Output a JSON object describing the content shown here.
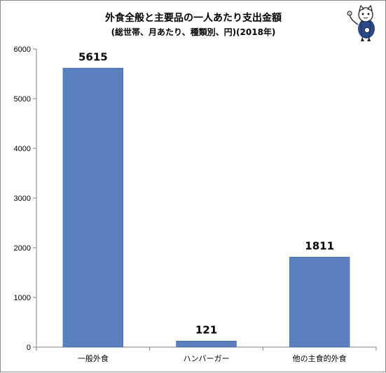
{
  "chart_data": {
    "type": "bar",
    "title": "外食全般と主要品の一人あたり支出金額",
    "subtitle": "(総世帯、月あたり、種類別、円)(2018年)",
    "categories": [
      "一般外食",
      "ハンバーガー",
      "他の主食的外食"
    ],
    "values": [
      5615,
      121,
      1811
    ],
    "data_labels": [
      "5615",
      "121",
      "1811"
    ],
    "y_ticks": [
      "0",
      "1000",
      "2000",
      "3000",
      "4000",
      "5000",
      "6000"
    ],
    "ylim": [
      0,
      6000
    ],
    "xlabel": "",
    "ylabel": "",
    "grid": false,
    "legend": "none",
    "bar_color": "#5b80c0",
    "bar_edge_color": "#4a6fae"
  },
  "mascot": {
    "icon": "cat-mascot-icon"
  }
}
